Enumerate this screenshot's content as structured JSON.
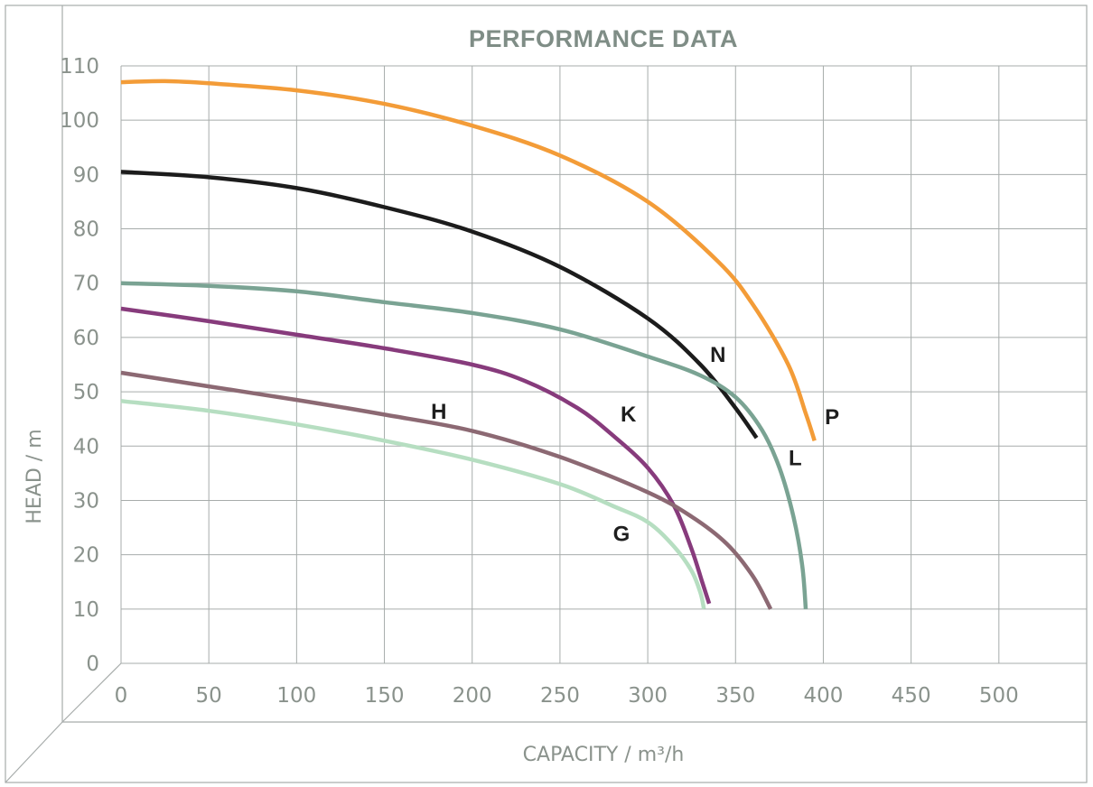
{
  "chart_data": {
    "type": "line",
    "title": "PERFORMANCE DATA",
    "xlabel": "CAPACITY / m³/h",
    "ylabel": "HEAD / m",
    "xlim": [
      0,
      550
    ],
    "ylim": [
      0,
      110
    ],
    "x_ticks": [
      0,
      50,
      100,
      150,
      200,
      250,
      300,
      350,
      400,
      450,
      500
    ],
    "y_ticks": [
      0,
      10,
      20,
      30,
      40,
      50,
      60,
      70,
      80,
      90,
      100,
      110
    ],
    "x_tick_labels": [
      "0",
      "50",
      "100",
      "150",
      "200",
      "250",
      "300",
      "350",
      "400",
      "450",
      "500"
    ],
    "y_tick_labels": [
      "0",
      "10",
      "20",
      "30",
      "40",
      "50",
      "60",
      "70",
      "80",
      "90",
      "100",
      "110"
    ],
    "grid": true,
    "legend": "none",
    "series": [
      {
        "name": "P",
        "color": "#f39c38",
        "points": [
          [
            0,
            107
          ],
          [
            25,
            107.2
          ],
          [
            50,
            106.8
          ],
          [
            100,
            105.5
          ],
          [
            150,
            103
          ],
          [
            200,
            99
          ],
          [
            250,
            93.5
          ],
          [
            300,
            85
          ],
          [
            340,
            74
          ],
          [
            360,
            66
          ],
          [
            380,
            55
          ],
          [
            390,
            46
          ],
          [
            395,
            41
          ]
        ]
      },
      {
        "name": "N",
        "color": "#1c1c1c",
        "points": [
          [
            0,
            90.5
          ],
          [
            50,
            89.5
          ],
          [
            100,
            87.5
          ],
          [
            150,
            84
          ],
          [
            200,
            79.5
          ],
          [
            250,
            73
          ],
          [
            300,
            63.5
          ],
          [
            330,
            55
          ],
          [
            350,
            47
          ],
          [
            362,
            41.5
          ]
        ]
      },
      {
        "name": "L",
        "color": "#7aa393",
        "points": [
          [
            0,
            70
          ],
          [
            50,
            69.5
          ],
          [
            100,
            68.5
          ],
          [
            150,
            66.5
          ],
          [
            200,
            64.5
          ],
          [
            250,
            61.5
          ],
          [
            300,
            56.5
          ],
          [
            330,
            53
          ],
          [
            350,
            49
          ],
          [
            365,
            43
          ],
          [
            375,
            36
          ],
          [
            383,
            27
          ],
          [
            388,
            18
          ],
          [
            390,
            10
          ]
        ]
      },
      {
        "name": "K",
        "color": "#873b7c",
        "points": [
          [
            0,
            65.3
          ],
          [
            50,
            63
          ],
          [
            100,
            60.5
          ],
          [
            150,
            58
          ],
          [
            200,
            55
          ],
          [
            230,
            52
          ],
          [
            260,
            47
          ],
          [
            280,
            42
          ],
          [
            300,
            36
          ],
          [
            315,
            29
          ],
          [
            325,
            21
          ],
          [
            331,
            15
          ],
          [
            335,
            11
          ]
        ]
      },
      {
        "name": "H",
        "color": "#8c6973",
        "points": [
          [
            0,
            53.5
          ],
          [
            50,
            51
          ],
          [
            100,
            48.5
          ],
          [
            150,
            45.8
          ],
          [
            200,
            42.8
          ],
          [
            250,
            38
          ],
          [
            300,
            31.5
          ],
          [
            325,
            27
          ],
          [
            345,
            22
          ],
          [
            360,
            16
          ],
          [
            370,
            10
          ]
        ]
      },
      {
        "name": "G",
        "color": "#b6dec1",
        "points": [
          [
            0,
            48.3
          ],
          [
            50,
            46.5
          ],
          [
            100,
            44
          ],
          [
            150,
            41
          ],
          [
            200,
            37.5
          ],
          [
            250,
            33
          ],
          [
            280,
            29
          ],
          [
            300,
            26
          ],
          [
            315,
            21.5
          ],
          [
            325,
            17
          ],
          [
            330,
            13
          ],
          [
            332,
            10
          ]
        ]
      }
    ],
    "annotations": [
      {
        "text": "N",
        "x": 340,
        "y": 57
      },
      {
        "text": "P",
        "x": 405,
        "y": 45.5
      },
      {
        "text": "L",
        "x": 384,
        "y": 38
      },
      {
        "text": "K",
        "x": 289,
        "y": 46
      },
      {
        "text": "H",
        "x": 181,
        "y": 46.5
      },
      {
        "text": "G",
        "x": 285,
        "y": 24
      }
    ]
  }
}
